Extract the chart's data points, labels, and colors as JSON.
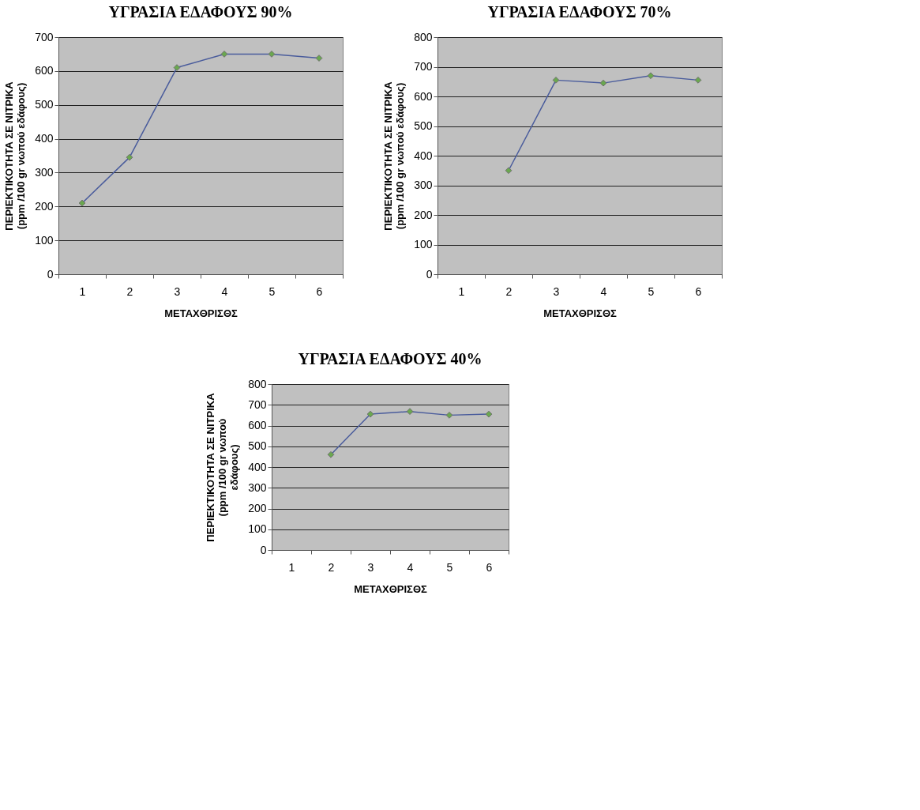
{
  "chart_data": [
    {
      "type": "line",
      "title": "ΥΓΡΑΣΙΑ ΕΔΑΦΟΥΣ 90%",
      "xlabel": "ΜΕΤΑΧΘΡΙΣΘΣ",
      "ylabel": [
        "ΠΕΡΙΕΚΤΙΚΟΤΗΤΑ ΣΕ ΝΙΤΡΙΚΑ",
        "(ppm /100 gr νωπού εδάφους)"
      ],
      "categories": [
        "1",
        "2",
        "3",
        "4",
        "5",
        "6"
      ],
      "series": [
        {
          "color": "#4a5c9c",
          "values": [
            210,
            345,
            610,
            650,
            650,
            638
          ]
        }
      ],
      "ylim": [
        0,
        700
      ],
      "yticks": [
        0,
        100,
        200,
        300,
        400,
        500,
        600,
        700
      ],
      "grid": "y",
      "marker": "diamond"
    },
    {
      "type": "line",
      "title": "ΥΓΡΑΣΙΑ ΕΔΑΦΟΥΣ 70%",
      "xlabel": "ΜΕΤΑΧΘΡΙΣΘΣ",
      "ylabel": [
        "ΠΕΡΙΕΚΤΙΚΟΤΗΤΑ ΣΕ ΝΙΤΡΙΚΑ",
        "(ppm /100 gr νωπού εδάφους)"
      ],
      "categories": [
        "1",
        "2",
        "3",
        "4",
        "5",
        "6"
      ],
      "series": [
        {
          "color": "#4a5c9c",
          "values": [
            null,
            350,
            655,
            645,
            670,
            655
          ]
        }
      ],
      "ylim": [
        0,
        800
      ],
      "yticks": [
        0,
        100,
        200,
        300,
        400,
        500,
        600,
        700,
        800
      ],
      "grid": "y",
      "marker": "diamond"
    },
    {
      "type": "line",
      "title": "ΥΓΡΑΣΙΑ ΕΔΑΦΟΥΣ 40%",
      "xlabel": "ΜΕΤΑΧΘΡΙΣΘΣ",
      "ylabel": [
        "ΠΕΡΙΕΚΤΙΚΟΤΗΤΑ ΣΕ ΝΙΤΡΙΚΑ",
        "(ppm /100 gr νωπού",
        "εδάφους)"
      ],
      "categories": [
        "1",
        "2",
        "3",
        "4",
        "5",
        "6"
      ],
      "series": [
        {
          "color": "#4a5c9c",
          "values": [
            null,
            460,
            655,
            668,
            650,
            655
          ]
        }
      ],
      "ylim": [
        0,
        800
      ],
      "yticks": [
        0,
        100,
        200,
        300,
        400,
        500,
        600,
        700,
        800
      ],
      "grid": "y",
      "marker": "diamond"
    }
  ]
}
